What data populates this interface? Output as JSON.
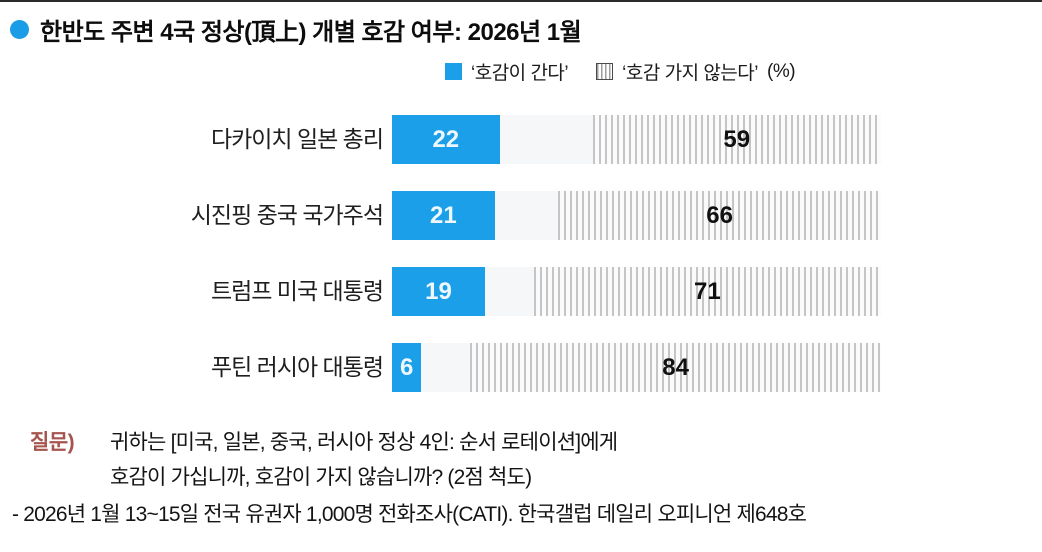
{
  "header": {
    "title": "한반도 주변 4국 정상(頂上) 개별 호감 여부: 2026년 1월",
    "bullet_color": "#1b9ce6"
  },
  "legend": {
    "favor_label": "‘호감이 간다’",
    "unfavor_label": "‘호감 가지 않는다’",
    "unit_label": "(%)",
    "favor_color": "#1b9fe8",
    "unfavor_pattern": "vertical-hatch-gray"
  },
  "chart_data": {
    "type": "bar",
    "orientation": "horizontal",
    "title": "한반도 주변 4국 정상(頂上) 개별 호감 여부: 2026년 1월",
    "unit": "%",
    "xlim": [
      0,
      100
    ],
    "grid": false,
    "legend_position": "top-right",
    "categories": [
      "다카이치 일본 총리",
      "시진핑 중국 국가주석",
      "트럼프 미국 대통령",
      "푸틴 러시아 대통령"
    ],
    "series": [
      {
        "name": "‘호감이 간다’",
        "style": "solid",
        "color": "#1b9fe8",
        "values": [
          22,
          21,
          19,
          6
        ]
      },
      {
        "name": "‘호감 가지 않는다’",
        "style": "hatched",
        "color": "#c3c5c7",
        "values": [
          59,
          66,
          71,
          84
        ]
      }
    ],
    "bar_alignment": "favor left-aligned, unfavor right-aligned, middle gap = no opinion"
  },
  "footnote": {
    "question_prefix": "질문)",
    "question_prefix_color": "#a5544e",
    "question_line1": "귀하는 [미국, 일본, 중국, 러시아 정상 4인: 순서 로테이션]에게",
    "question_line2": "호감이 가십니까, 호감이 가지 않습니까? (2점 척도)",
    "source_line": "- 2026년 1월 13~15일 전국 유권자 1,000명 전화조사(CATI). 한국갤럽 데일리 오피니언 제648호"
  }
}
